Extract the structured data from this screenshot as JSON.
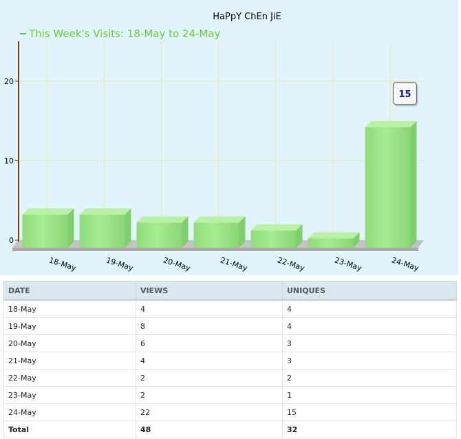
{
  "chart_data": {
    "type": "bar",
    "title": "HaPpY ChEn JiE",
    "legend": "This Week's Visits: 18-May to 24-May",
    "categories": [
      "18-May",
      "19-May",
      "20-May",
      "21-May",
      "22-May",
      "23-May",
      "24-May"
    ],
    "values": [
      4,
      4,
      3,
      3,
      2,
      1,
      15
    ],
    "ylim": [
      0,
      25
    ],
    "yticks": [
      0,
      10,
      20
    ],
    "tooltip": {
      "category": "24-May",
      "value": "15"
    },
    "grid": true,
    "legend_position": "top-left",
    "colors": {
      "bar": "#9ee58a",
      "bar_top": "#b9f2a4",
      "bar_side": "#7fcf6c",
      "legend": "#66cc33",
      "axis": "#7a3a10",
      "grid": "#f3e7a6",
      "panel": "#e2f4fb"
    }
  },
  "table": {
    "headers": [
      "DATE",
      "VIEWS",
      "UNIQUES"
    ],
    "rows": [
      [
        "18-May",
        "4",
        "4"
      ],
      [
        "19-May",
        "8",
        "4"
      ],
      [
        "20-May",
        "6",
        "3"
      ],
      [
        "21-May",
        "4",
        "3"
      ],
      [
        "22-May",
        "2",
        "2"
      ],
      [
        "23-May",
        "2",
        "1"
      ],
      [
        "24-May",
        "22",
        "15"
      ]
    ],
    "total": [
      "Total",
      "48",
      "32"
    ]
  }
}
